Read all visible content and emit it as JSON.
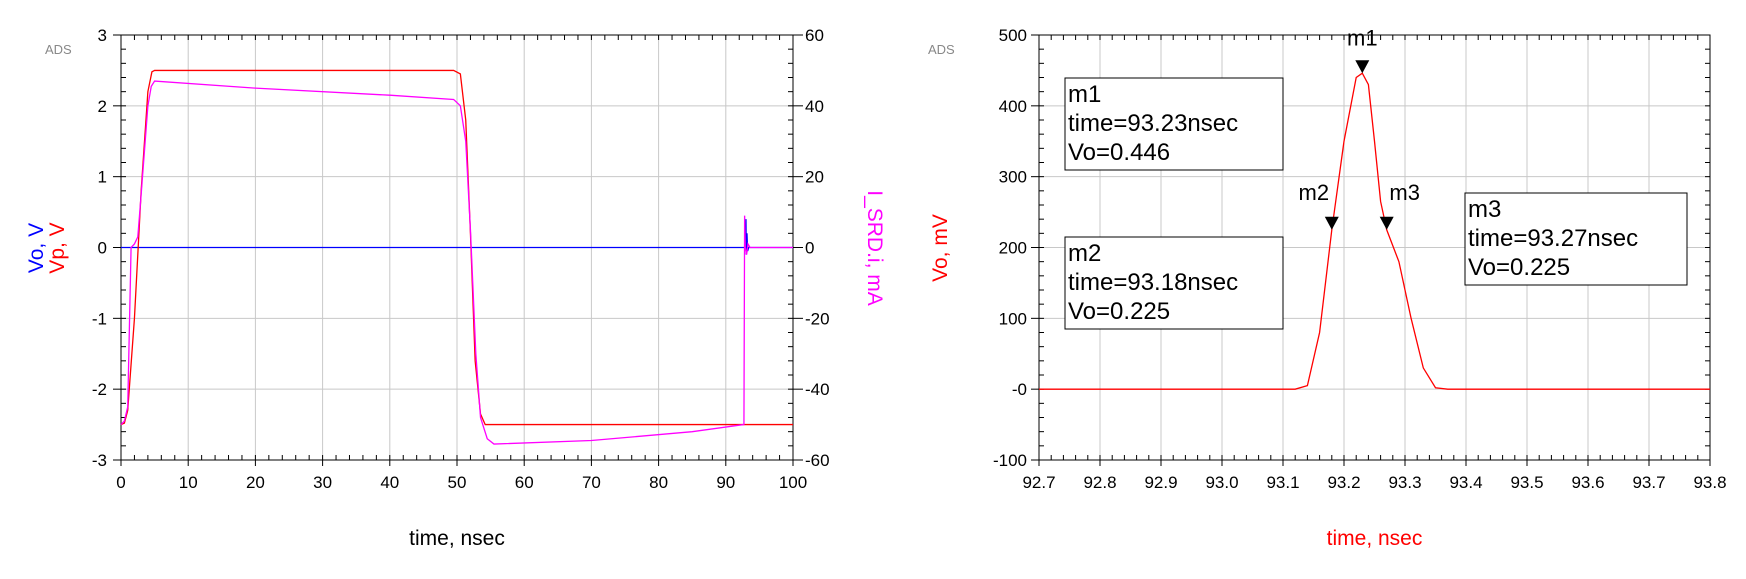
{
  "chart_data": [
    {
      "type": "line",
      "watermark": "ADS",
      "xlabel": "time, nsec",
      "ylabel_left_parts": [
        {
          "text": "Vo, V",
          "color": "#0000FF"
        },
        {
          "text": "Vp, V",
          "color": "#FF0000"
        }
      ],
      "ylabel_right": "I_SRD.i, mA",
      "xlim": [
        0,
        100
      ],
      "ylim_left": [
        -3,
        3
      ],
      "ylim_right": [
        -60,
        60
      ],
      "x_ticks": [
        0,
        10,
        20,
        30,
        40,
        50,
        60,
        70,
        80,
        90,
        100
      ],
      "x_tick_labels": [
        "0",
        "10",
        "20",
        "30",
        "40",
        "50",
        "60",
        "70",
        "80",
        "90",
        "100"
      ],
      "y_ticks_left": [
        3,
        2,
        1,
        0,
        -1,
        -2,
        -3
      ],
      "y_tick_labels_left": [
        "3",
        "2",
        "1",
        "0",
        "-1",
        "-2",
        "-3"
      ],
      "y_ticks_right": [
        60,
        40,
        20,
        0,
        -20,
        -40,
        -60
      ],
      "y_tick_labels_right": [
        "60",
        "40",
        "20",
        "0",
        "-20",
        "-40",
        "-60"
      ],
      "grid": true,
      "series": [
        {
          "name": "Vo",
          "color": "#0000FF",
          "axis": "left",
          "points": [
            [
              0,
              0
            ],
            [
              92.9,
              0
            ],
            [
              93.0,
              0.4
            ],
            [
              93.05,
              -0.1
            ],
            [
              93.15,
              0.2
            ],
            [
              93.25,
              -0.05
            ],
            [
              93.4,
              0
            ],
            [
              100,
              0
            ]
          ]
        },
        {
          "name": "Vp",
          "color": "#FF0000",
          "axis": "left",
          "points": [
            [
              0,
              -2.5
            ],
            [
              0.5,
              -2.48
            ],
            [
              1,
              -2.3
            ],
            [
              2,
              -1.0
            ],
            [
              3,
              0.8
            ],
            [
              4,
              2.2
            ],
            [
              4.6,
              2.48
            ],
            [
              5,
              2.5
            ],
            [
              49.5,
              2.5
            ],
            [
              50.5,
              2.45
            ],
            [
              51.3,
              1.8
            ],
            [
              52,
              0.2
            ],
            [
              52.7,
              -1.6
            ],
            [
              53.5,
              -2.35
            ],
            [
              54.2,
              -2.5
            ],
            [
              100,
              -2.5
            ]
          ]
        },
        {
          "name": "I_SRD.i",
          "color": "#FF00FF",
          "axis": "right",
          "points": [
            [
              0,
              -50
            ],
            [
              0.5,
              -49
            ],
            [
              1,
              -45
            ],
            [
              1.5,
              0
            ],
            [
              2,
              1
            ],
            [
              2.5,
              3
            ],
            [
              3,
              15
            ],
            [
              4,
              40
            ],
            [
              4.5,
              45.5
            ],
            [
              5,
              47
            ],
            [
              20,
              45
            ],
            [
              40,
              43
            ],
            [
              49.5,
              41.8
            ],
            [
              50.5,
              40
            ],
            [
              51.3,
              30
            ],
            [
              52,
              5
            ],
            [
              52.8,
              -30
            ],
            [
              53.5,
              -48
            ],
            [
              54.5,
              -54
            ],
            [
              55.5,
              -55.5
            ],
            [
              70,
              -54.5
            ],
            [
              85,
              -52
            ],
            [
              92.7,
              -50
            ],
            [
              92.8,
              9
            ],
            [
              92.9,
              0
            ],
            [
              93.1,
              -2
            ],
            [
              93.3,
              1
            ],
            [
              93.6,
              0
            ],
            [
              100,
              0
            ]
          ]
        }
      ]
    },
    {
      "type": "line",
      "watermark": "ADS",
      "xlabel": "time, nsec",
      "ylabel": "Vo, mV",
      "xlim": [
        92.7,
        93.8
      ],
      "ylim": [
        -100,
        500
      ],
      "x_ticks": [
        92.7,
        92.8,
        92.9,
        93.0,
        93.1,
        93.2,
        93.3,
        93.4,
        93.5,
        93.6,
        93.7,
        93.8
      ],
      "x_tick_labels": [
        "92.7",
        "92.8",
        "92.9",
        "93.0",
        "93.1",
        "93.2",
        "93.3",
        "93.4",
        "93.5",
        "93.6",
        "93.7",
        "93.8"
      ],
      "y_ticks": [
        500,
        400,
        300,
        200,
        100,
        0,
        -100
      ],
      "y_tick_labels": [
        "500",
        "400",
        "300",
        "200",
        "100",
        "-0",
        "-100"
      ],
      "grid": true,
      "series": [
        {
          "name": "Vo",
          "color": "#FF0000",
          "points": [
            [
              92.7,
              0
            ],
            [
              93.12,
              0
            ],
            [
              93.14,
              5
            ],
            [
              93.16,
              80
            ],
            [
              93.18,
              225
            ],
            [
              93.2,
              350
            ],
            [
              93.22,
              440
            ],
            [
              93.23,
              446
            ],
            [
              93.24,
              430
            ],
            [
              93.25,
              350
            ],
            [
              93.26,
              265
            ],
            [
              93.27,
              225
            ],
            [
              93.29,
              180
            ],
            [
              93.31,
              100
            ],
            [
              93.33,
              30
            ],
            [
              93.35,
              2
            ],
            [
              93.37,
              0
            ],
            [
              93.8,
              0
            ]
          ]
        }
      ],
      "markers": [
        {
          "id": "m1",
          "x": 93.23,
          "y": 446,
          "label": "m1",
          "lines": [
            "m1",
            "time=93.23nsec",
            "Vo=0.446"
          ]
        },
        {
          "id": "m2",
          "x": 93.18,
          "y": 225,
          "label": "m2",
          "lines": [
            "m2",
            "time=93.18nsec",
            "Vo=0.225"
          ]
        },
        {
          "id": "m3",
          "x": 93.27,
          "y": 225,
          "label": "m3",
          "lines": [
            "m3",
            "time=93.27nsec",
            "Vo=0.225"
          ]
        }
      ]
    }
  ]
}
